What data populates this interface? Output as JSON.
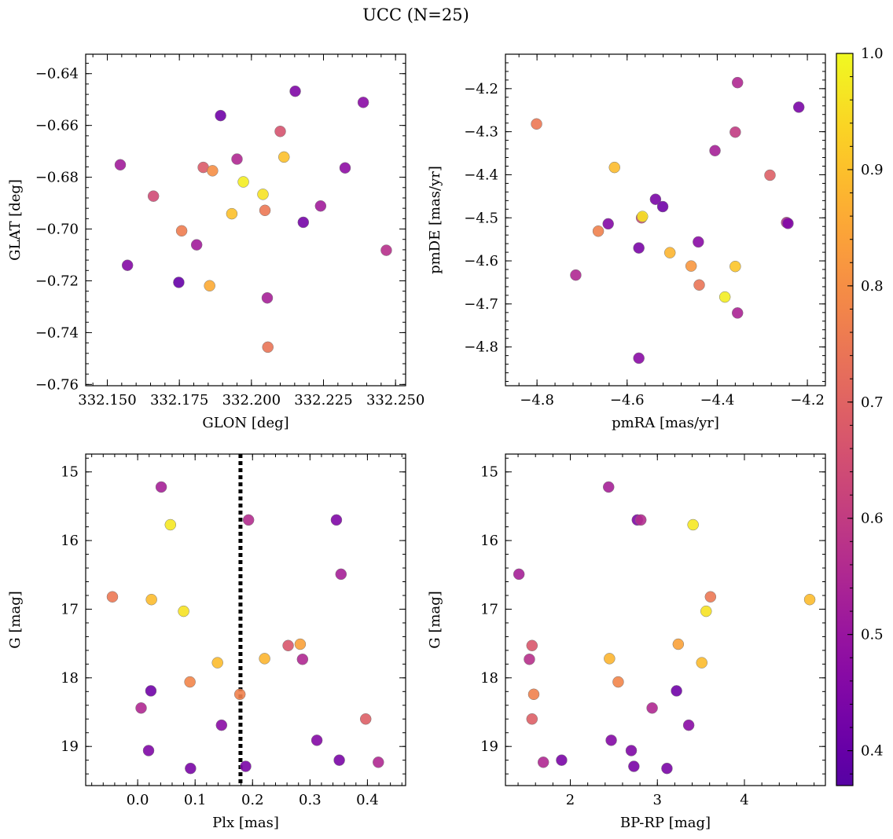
{
  "figure": {
    "title": "UCC (N=25)",
    "colorbar": {
      "range": [
        0.37,
        1.0
      ],
      "ticks": [
        0.4,
        0.5,
        0.6,
        0.7,
        0.8,
        0.9,
        1.0
      ],
      "tick_labels": [
        "0.4",
        "0.5",
        "0.6",
        "0.7",
        "0.8",
        "0.9",
        "1.0"
      ],
      "colormap": "plasma"
    }
  },
  "chart_data": [
    {
      "type": "scatter",
      "panel": "top-left",
      "xlabel": "GLON [deg]",
      "ylabel": "GLAT [deg]",
      "xlim": [
        332.1425,
        332.2535
      ],
      "ylim": [
        -0.7605,
        -0.6325
      ],
      "invert_y": false,
      "xticks": [
        332.15,
        332.175,
        332.2,
        332.225,
        332.25
      ],
      "xtick_labels": [
        "332.150",
        "332.175",
        "332.200",
        "332.225",
        "332.250"
      ],
      "yticks": [
        -0.76,
        -0.74,
        -0.72,
        -0.7,
        -0.68,
        -0.66,
        -0.64
      ],
      "ytick_labels": [
        "−0.76",
        "−0.74",
        "−0.72",
        "−0.70",
        "−0.68",
        "−0.66",
        "−0.64"
      ],
      "points": [
        {
          "x": 332.1545,
          "y": -0.6752,
          "c": 0.52
        },
        {
          "x": 332.157,
          "y": -0.714,
          "c": 0.46
        },
        {
          "x": 332.166,
          "y": -0.6873,
          "c": 0.64
        },
        {
          "x": 332.1748,
          "y": -0.7206,
          "c": 0.4
        },
        {
          "x": 332.1758,
          "y": -0.7007,
          "c": 0.76
        },
        {
          "x": 332.181,
          "y": -0.7061,
          "c": 0.52
        },
        {
          "x": 332.1833,
          "y": -0.6762,
          "c": 0.68
        },
        {
          "x": 332.1855,
          "y": -0.7219,
          "c": 0.86
        },
        {
          "x": 332.1865,
          "y": -0.6775,
          "c": 0.8
        },
        {
          "x": 332.1893,
          "y": -0.6562,
          "c": 0.42
        },
        {
          "x": 332.1932,
          "y": -0.6941,
          "c": 0.9
        },
        {
          "x": 332.195,
          "y": -0.673,
          "c": 0.55
        },
        {
          "x": 332.1972,
          "y": -0.6818,
          "c": 0.98
        },
        {
          "x": 332.204,
          "y": -0.6866,
          "c": 0.96
        },
        {
          "x": 332.2047,
          "y": -0.6928,
          "c": 0.75
        },
        {
          "x": 332.2055,
          "y": -0.7266,
          "c": 0.53
        },
        {
          "x": 332.2057,
          "y": -0.7456,
          "c": 0.74
        },
        {
          "x": 332.21,
          "y": -0.6623,
          "c": 0.66
        },
        {
          "x": 332.2113,
          "y": -0.6722,
          "c": 0.9
        },
        {
          "x": 332.2152,
          "y": -0.6468,
          "c": 0.45
        },
        {
          "x": 332.218,
          "y": -0.6974,
          "c": 0.43
        },
        {
          "x": 332.224,
          "y": -0.6911,
          "c": 0.52
        },
        {
          "x": 332.2325,
          "y": -0.6764,
          "c": 0.48
        },
        {
          "x": 332.2388,
          "y": -0.6511,
          "c": 0.47
        },
        {
          "x": 332.2468,
          "y": -0.7082,
          "c": 0.57
        }
      ]
    },
    {
      "type": "scatter",
      "panel": "top-right",
      "xlabel": "pmRA [mas/yr]",
      "ylabel": "pmDE [mas/yr]",
      "xlim": [
        -4.87,
        -4.16
      ],
      "ylim": [
        -4.89,
        -4.12
      ],
      "invert_y": false,
      "xticks": [
        -4.8,
        -4.6,
        -4.4,
        -4.2
      ],
      "xtick_labels": [
        "−4.8",
        "−4.6",
        "−4.4",
        "−4.2"
      ],
      "yticks": [
        -4.8,
        -4.7,
        -4.6,
        -4.5,
        -4.4,
        -4.3,
        -4.2
      ],
      "ytick_labels": [
        "−4.8",
        "−4.7",
        "−4.6",
        "−4.5",
        "−4.4",
        "−4.3",
        "−4.2"
      ],
      "points": [
        {
          "x": -4.801,
          "y": -4.282,
          "c": 0.75
        },
        {
          "x": -4.714,
          "y": -4.633,
          "c": 0.55
        },
        {
          "x": -4.664,
          "y": -4.531,
          "c": 0.77
        },
        {
          "x": -4.642,
          "y": -4.514,
          "c": 0.46
        },
        {
          "x": -4.628,
          "y": -4.383,
          "c": 0.89
        },
        {
          "x": -4.568,
          "y": -4.5,
          "c": 0.64
        },
        {
          "x": -4.566,
          "y": -4.497,
          "c": 0.96
        },
        {
          "x": -4.574,
          "y": -4.57,
          "c": 0.44
        },
        {
          "x": -4.574,
          "y": -4.826,
          "c": 0.47
        },
        {
          "x": -4.537,
          "y": -4.457,
          "c": 0.44
        },
        {
          "x": -4.521,
          "y": -4.474,
          "c": 0.42
        },
        {
          "x": -4.505,
          "y": -4.581,
          "c": 0.88
        },
        {
          "x": -4.458,
          "y": -4.612,
          "c": 0.82
        },
        {
          "x": -4.442,
          "y": -4.556,
          "c": 0.47
        },
        {
          "x": -4.44,
          "y": -4.656,
          "c": 0.74
        },
        {
          "x": -4.405,
          "y": -4.344,
          "c": 0.53
        },
        {
          "x": -4.383,
          "y": -4.684,
          "c": 0.98
        },
        {
          "x": -4.36,
          "y": -4.613,
          "c": 0.91
        },
        {
          "x": -4.36,
          "y": -4.301,
          "c": 0.6
        },
        {
          "x": -4.355,
          "y": -4.186,
          "c": 0.55
        },
        {
          "x": -4.355,
          "y": -4.721,
          "c": 0.54
        },
        {
          "x": -4.283,
          "y": -4.401,
          "c": 0.69
        },
        {
          "x": -4.246,
          "y": -4.511,
          "c": 0.56
        },
        {
          "x": -4.243,
          "y": -4.513,
          "c": 0.45
        },
        {
          "x": -4.219,
          "y": -4.243,
          "c": 0.44
        }
      ]
    },
    {
      "type": "scatter",
      "panel": "bottom-left",
      "xlabel": "Plx [mas]",
      "ylabel": "G [mag]",
      "xlim": [
        -0.0905,
        0.4665
      ],
      "ylim": [
        14.74,
        19.57
      ],
      "invert_y": true,
      "xticks": [
        0.0,
        0.1,
        0.2,
        0.3,
        0.4
      ],
      "xtick_labels": [
        "0.0",
        "0.1",
        "0.2",
        "0.3",
        "0.4"
      ],
      "yticks": [
        15,
        16,
        17,
        18,
        19
      ],
      "ytick_labels": [
        "15",
        "16",
        "17",
        "18",
        "19"
      ],
      "vline": {
        "x": 0.179,
        "style": "dotted"
      },
      "points": [
        {
          "x": -0.044,
          "y": 16.82,
          "c": 0.75
        },
        {
          "x": 0.006,
          "y": 18.44,
          "c": 0.55
        },
        {
          "x": 0.019,
          "y": 19.06,
          "c": 0.45
        },
        {
          "x": 0.023,
          "y": 18.19,
          "c": 0.42
        },
        {
          "x": 0.024,
          "y": 16.86,
          "c": 0.89
        },
        {
          "x": 0.041,
          "y": 15.22,
          "c": 0.53
        },
        {
          "x": 0.057,
          "y": 15.77,
          "c": 0.97
        },
        {
          "x": 0.08,
          "y": 17.03,
          "c": 0.96
        },
        {
          "x": 0.091,
          "y": 18.06,
          "c": 0.78
        },
        {
          "x": 0.092,
          "y": 19.32,
          "c": 0.44
        },
        {
          "x": 0.139,
          "y": 17.78,
          "c": 0.89
        },
        {
          "x": 0.146,
          "y": 18.69,
          "c": 0.47
        },
        {
          "x": 0.178,
          "y": 18.24,
          "c": 0.77
        },
        {
          "x": 0.188,
          "y": 19.29,
          "c": 0.44
        },
        {
          "x": 0.193,
          "y": 15.7,
          "c": 0.56
        },
        {
          "x": 0.221,
          "y": 17.72,
          "c": 0.88
        },
        {
          "x": 0.262,
          "y": 17.53,
          "c": 0.67
        },
        {
          "x": 0.283,
          "y": 17.51,
          "c": 0.84
        },
        {
          "x": 0.287,
          "y": 17.73,
          "c": 0.55
        },
        {
          "x": 0.312,
          "y": 18.91,
          "c": 0.46
        },
        {
          "x": 0.346,
          "y": 15.7,
          "c": 0.45
        },
        {
          "x": 0.351,
          "y": 19.2,
          "c": 0.44
        },
        {
          "x": 0.354,
          "y": 16.49,
          "c": 0.53
        },
        {
          "x": 0.397,
          "y": 18.6,
          "c": 0.69
        },
        {
          "x": 0.419,
          "y": 19.23,
          "c": 0.55
        }
      ]
    },
    {
      "type": "scatter",
      "panel": "bottom-right",
      "xlabel": "BP-RP [mag]",
      "ylabel": "G [mag]",
      "xlim": [
        1.255,
        4.93
      ],
      "ylim": [
        14.74,
        19.57
      ],
      "invert_y": true,
      "xticks": [
        2,
        3,
        4
      ],
      "xtick_labels": [
        "2",
        "3",
        "4"
      ],
      "yticks": [
        15,
        16,
        17,
        18,
        19
      ],
      "ytick_labels": [
        "15",
        "16",
        "17",
        "18",
        "19"
      ],
      "points": [
        {
          "x": 1.41,
          "y": 16.49,
          "c": 0.53
        },
        {
          "x": 1.53,
          "y": 17.73,
          "c": 0.57
        },
        {
          "x": 1.56,
          "y": 17.53,
          "c": 0.67
        },
        {
          "x": 1.56,
          "y": 18.6,
          "c": 0.69
        },
        {
          "x": 1.58,
          "y": 18.24,
          "c": 0.77
        },
        {
          "x": 1.69,
          "y": 19.23,
          "c": 0.55
        },
        {
          "x": 1.9,
          "y": 19.2,
          "c": 0.44
        },
        {
          "x": 2.44,
          "y": 15.22,
          "c": 0.53
        },
        {
          "x": 2.45,
          "y": 17.72,
          "c": 0.88
        },
        {
          "x": 2.47,
          "y": 18.91,
          "c": 0.46
        },
        {
          "x": 2.55,
          "y": 18.06,
          "c": 0.78
        },
        {
          "x": 2.7,
          "y": 19.06,
          "c": 0.45
        },
        {
          "x": 2.73,
          "y": 19.29,
          "c": 0.44
        },
        {
          "x": 2.77,
          "y": 15.7,
          "c": 0.45
        },
        {
          "x": 2.81,
          "y": 15.7,
          "c": 0.56
        },
        {
          "x": 2.94,
          "y": 18.44,
          "c": 0.55
        },
        {
          "x": 3.11,
          "y": 19.32,
          "c": 0.44
        },
        {
          "x": 3.22,
          "y": 18.19,
          "c": 0.42
        },
        {
          "x": 3.24,
          "y": 17.51,
          "c": 0.84
        },
        {
          "x": 3.36,
          "y": 18.69,
          "c": 0.47
        },
        {
          "x": 3.41,
          "y": 15.77,
          "c": 0.97
        },
        {
          "x": 3.51,
          "y": 17.78,
          "c": 0.89
        },
        {
          "x": 3.56,
          "y": 17.03,
          "c": 0.96
        },
        {
          "x": 3.61,
          "y": 16.82,
          "c": 0.75
        },
        {
          "x": 4.75,
          "y": 16.86,
          "c": 0.89
        }
      ]
    }
  ]
}
